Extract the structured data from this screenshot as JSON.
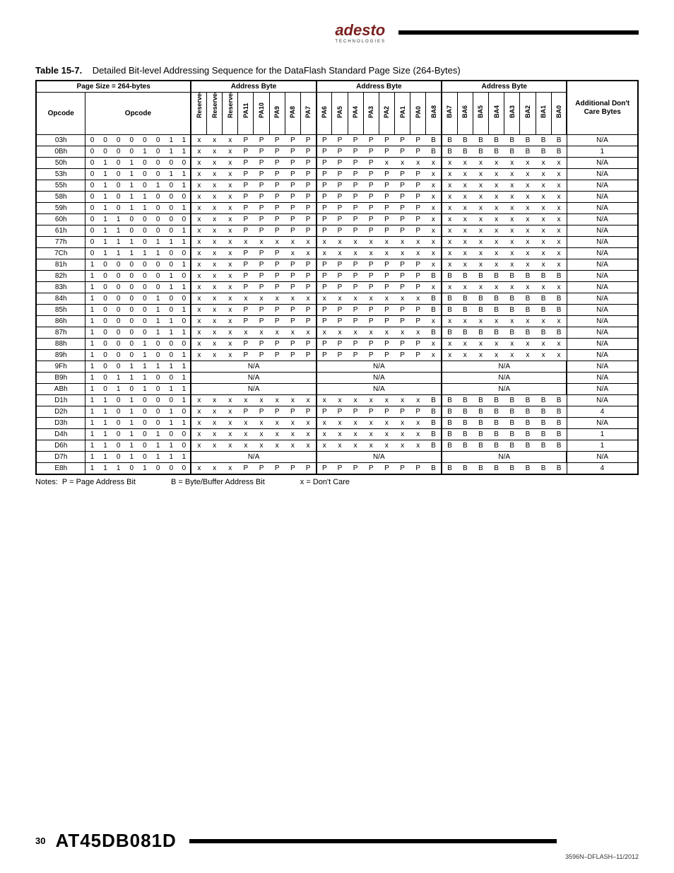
{
  "brand": {
    "name": "adesto",
    "sub": "TECHNOLOGIES"
  },
  "caption": {
    "label": "Table 15-7.",
    "text": "Detailed Bit-level Addressing Sequence for the DataFlash Standard Page Size (264-Bytes)"
  },
  "group_headers": {
    "page_size": "Page Size = 264-bytes",
    "addr1": "Address Byte",
    "addr2": "Address Byte",
    "addr3": "Address Byte",
    "extra": "Additional Don't Care Bytes"
  },
  "col_headers": {
    "opcode": "Opcode",
    "opcode_bits": "Opcode",
    "ab1": [
      "Reserved",
      "Reserved",
      "Reserved",
      "PA11",
      "PA10",
      "PA9",
      "PA8",
      "PA7"
    ],
    "ab2": [
      "PA6",
      "PA5",
      "PA4",
      "PA3",
      "PA2",
      "PA1",
      "PA0",
      "BA8"
    ],
    "ab3": [
      "BA7",
      "BA6",
      "BA5",
      "BA4",
      "BA3",
      "BA2",
      "BA1",
      "BA0"
    ]
  },
  "rows": [
    {
      "op": "03h",
      "ob": [
        "0",
        "0",
        "0",
        "0",
        "0",
        "0",
        "1",
        "1"
      ],
      "a1": [
        "x",
        "x",
        "x",
        "P",
        "P",
        "P",
        "P",
        "P"
      ],
      "a2": [
        "P",
        "P",
        "P",
        "P",
        "P",
        "P",
        "P",
        "B"
      ],
      "a3": [
        "B",
        "B",
        "B",
        "B",
        "B",
        "B",
        "B",
        "B"
      ],
      "ex": "N/A"
    },
    {
      "op": "0Bh",
      "ob": [
        "0",
        "0",
        "0",
        "0",
        "1",
        "0",
        "1",
        "1"
      ],
      "a1": [
        "x",
        "x",
        "x",
        "P",
        "P",
        "P",
        "P",
        "P"
      ],
      "a2": [
        "P",
        "P",
        "P",
        "P",
        "P",
        "P",
        "P",
        "B"
      ],
      "a3": [
        "B",
        "B",
        "B",
        "B",
        "B",
        "B",
        "B",
        "B"
      ],
      "ex": "1"
    },
    {
      "op": "50h",
      "ob": [
        "0",
        "1",
        "0",
        "1",
        "0",
        "0",
        "0",
        "0"
      ],
      "a1": [
        "x",
        "x",
        "x",
        "P",
        "P",
        "P",
        "P",
        "P"
      ],
      "a2": [
        "P",
        "P",
        "P",
        "P",
        "x",
        "x",
        "x",
        "x"
      ],
      "a3": [
        "x",
        "x",
        "x",
        "x",
        "x",
        "x",
        "x",
        "x"
      ],
      "ex": "N/A"
    },
    {
      "op": "53h",
      "ob": [
        "0",
        "1",
        "0",
        "1",
        "0",
        "0",
        "1",
        "1"
      ],
      "a1": [
        "x",
        "x",
        "x",
        "P",
        "P",
        "P",
        "P",
        "P"
      ],
      "a2": [
        "P",
        "P",
        "P",
        "P",
        "P",
        "P",
        "P",
        "x"
      ],
      "a3": [
        "x",
        "x",
        "x",
        "x",
        "x",
        "x",
        "x",
        "x"
      ],
      "ex": "N/A"
    },
    {
      "op": "55h",
      "ob": [
        "0",
        "1",
        "0",
        "1",
        "0",
        "1",
        "0",
        "1"
      ],
      "a1": [
        "x",
        "x",
        "x",
        "P",
        "P",
        "P",
        "P",
        "P"
      ],
      "a2": [
        "P",
        "P",
        "P",
        "P",
        "P",
        "P",
        "P",
        "x"
      ],
      "a3": [
        "x",
        "x",
        "x",
        "x",
        "x",
        "x",
        "x",
        "x"
      ],
      "ex": "N/A"
    },
    {
      "op": "58h",
      "ob": [
        "0",
        "1",
        "0",
        "1",
        "1",
        "0",
        "0",
        "0"
      ],
      "a1": [
        "x",
        "x",
        "x",
        "P",
        "P",
        "P",
        "P",
        "P"
      ],
      "a2": [
        "P",
        "P",
        "P",
        "P",
        "P",
        "P",
        "P",
        "x"
      ],
      "a3": [
        "x",
        "x",
        "x",
        "x",
        "x",
        "x",
        "x",
        "x"
      ],
      "ex": "N/A"
    },
    {
      "op": "59h",
      "ob": [
        "0",
        "1",
        "0",
        "1",
        "1",
        "0",
        "0",
        "1"
      ],
      "a1": [
        "x",
        "x",
        "x",
        "P",
        "P",
        "P",
        "P",
        "P"
      ],
      "a2": [
        "P",
        "P",
        "P",
        "P",
        "P",
        "P",
        "P",
        "x"
      ],
      "a3": [
        "x",
        "x",
        "x",
        "x",
        "x",
        "x",
        "x",
        "x"
      ],
      "ex": "N/A"
    },
    {
      "op": "60h",
      "ob": [
        "0",
        "1",
        "1",
        "0",
        "0",
        "0",
        "0",
        "0"
      ],
      "a1": [
        "x",
        "x",
        "x",
        "P",
        "P",
        "P",
        "P",
        "P"
      ],
      "a2": [
        "P",
        "P",
        "P",
        "P",
        "P",
        "P",
        "P",
        "x"
      ],
      "a3": [
        "x",
        "x",
        "x",
        "x",
        "x",
        "x",
        "x",
        "x"
      ],
      "ex": "N/A"
    },
    {
      "op": "61h",
      "ob": [
        "0",
        "1",
        "1",
        "0",
        "0",
        "0",
        "0",
        "1"
      ],
      "a1": [
        "x",
        "x",
        "x",
        "P",
        "P",
        "P",
        "P",
        "P"
      ],
      "a2": [
        "P",
        "P",
        "P",
        "P",
        "P",
        "P",
        "P",
        "x"
      ],
      "a3": [
        "x",
        "x",
        "x",
        "x",
        "x",
        "x",
        "x",
        "x"
      ],
      "ex": "N/A"
    },
    {
      "op": "77h",
      "ob": [
        "0",
        "1",
        "1",
        "1",
        "0",
        "1",
        "1",
        "1"
      ],
      "a1": [
        "x",
        "x",
        "x",
        "x",
        "x",
        "x",
        "x",
        "x"
      ],
      "a2": [
        "x",
        "x",
        "x",
        "x",
        "x",
        "x",
        "x",
        "x"
      ],
      "a3": [
        "x",
        "x",
        "x",
        "x",
        "x",
        "x",
        "x",
        "x"
      ],
      "ex": "N/A"
    },
    {
      "op": "7Ch",
      "ob": [
        "0",
        "1",
        "1",
        "1",
        "1",
        "1",
        "0",
        "0"
      ],
      "a1": [
        "x",
        "x",
        "x",
        "P",
        "P",
        "P",
        "x",
        "x"
      ],
      "a2": [
        "x",
        "x",
        "x",
        "x",
        "x",
        "x",
        "x",
        "x"
      ],
      "a3": [
        "x",
        "x",
        "x",
        "x",
        "x",
        "x",
        "x",
        "x"
      ],
      "ex": "N/A"
    },
    {
      "op": "81h",
      "ob": [
        "1",
        "0",
        "0",
        "0",
        "0",
        "0",
        "0",
        "1"
      ],
      "a1": [
        "x",
        "x",
        "x",
        "P",
        "P",
        "P",
        "P",
        "P"
      ],
      "a2": [
        "P",
        "P",
        "P",
        "P",
        "P",
        "P",
        "P",
        "x"
      ],
      "a3": [
        "x",
        "x",
        "x",
        "x",
        "x",
        "x",
        "x",
        "x"
      ],
      "ex": "N/A"
    },
    {
      "op": "82h",
      "ob": [
        "1",
        "0",
        "0",
        "0",
        "0",
        "0",
        "1",
        "0"
      ],
      "a1": [
        "x",
        "x",
        "x",
        "P",
        "P",
        "P",
        "P",
        "P"
      ],
      "a2": [
        "P",
        "P",
        "P",
        "P",
        "P",
        "P",
        "P",
        "B"
      ],
      "a3": [
        "B",
        "B",
        "B",
        "B",
        "B",
        "B",
        "B",
        "B"
      ],
      "ex": "N/A"
    },
    {
      "op": "83h",
      "ob": [
        "1",
        "0",
        "0",
        "0",
        "0",
        "0",
        "1",
        "1"
      ],
      "a1": [
        "x",
        "x",
        "x",
        "P",
        "P",
        "P",
        "P",
        "P"
      ],
      "a2": [
        "P",
        "P",
        "P",
        "P",
        "P",
        "P",
        "P",
        "x"
      ],
      "a3": [
        "x",
        "x",
        "x",
        "x",
        "x",
        "x",
        "x",
        "x"
      ],
      "ex": "N/A"
    },
    {
      "op": "84h",
      "ob": [
        "1",
        "0",
        "0",
        "0",
        "0",
        "1",
        "0",
        "0"
      ],
      "a1": [
        "x",
        "x",
        "x",
        "x",
        "x",
        "x",
        "x",
        "x"
      ],
      "a2": [
        "x",
        "x",
        "x",
        "x",
        "x",
        "x",
        "x",
        "B"
      ],
      "a3": [
        "B",
        "B",
        "B",
        "B",
        "B",
        "B",
        "B",
        "B"
      ],
      "ex": "N/A"
    },
    {
      "op": "85h",
      "ob": [
        "1",
        "0",
        "0",
        "0",
        "0",
        "1",
        "0",
        "1"
      ],
      "a1": [
        "x",
        "x",
        "x",
        "P",
        "P",
        "P",
        "P",
        "P"
      ],
      "a2": [
        "P",
        "P",
        "P",
        "P",
        "P",
        "P",
        "P",
        "B"
      ],
      "a3": [
        "B",
        "B",
        "B",
        "B",
        "B",
        "B",
        "B",
        "B"
      ],
      "ex": "N/A"
    },
    {
      "op": "86h",
      "ob": [
        "1",
        "0",
        "0",
        "0",
        "0",
        "1",
        "1",
        "0"
      ],
      "a1": [
        "x",
        "x",
        "x",
        "P",
        "P",
        "P",
        "P",
        "P"
      ],
      "a2": [
        "P",
        "P",
        "P",
        "P",
        "P",
        "P",
        "P",
        "x"
      ],
      "a3": [
        "x",
        "x",
        "x",
        "x",
        "x",
        "x",
        "x",
        "x"
      ],
      "ex": "N/A"
    },
    {
      "op": "87h",
      "ob": [
        "1",
        "0",
        "0",
        "0",
        "0",
        "1",
        "1",
        "1"
      ],
      "a1": [
        "x",
        "x",
        "x",
        "x",
        "x",
        "x",
        "x",
        "x"
      ],
      "a2": [
        "x",
        "x",
        "x",
        "x",
        "x",
        "x",
        "x",
        "B"
      ],
      "a3": [
        "B",
        "B",
        "B",
        "B",
        "B",
        "B",
        "B",
        "B"
      ],
      "ex": "N/A"
    },
    {
      "op": "88h",
      "ob": [
        "1",
        "0",
        "0",
        "0",
        "1",
        "0",
        "0",
        "0"
      ],
      "a1": [
        "x",
        "x",
        "x",
        "P",
        "P",
        "P",
        "P",
        "P"
      ],
      "a2": [
        "P",
        "P",
        "P",
        "P",
        "P",
        "P",
        "P",
        "x"
      ],
      "a3": [
        "x",
        "x",
        "x",
        "x",
        "x",
        "x",
        "x",
        "x"
      ],
      "ex": "N/A"
    },
    {
      "op": "89h",
      "ob": [
        "1",
        "0",
        "0",
        "0",
        "1",
        "0",
        "0",
        "1"
      ],
      "a1": [
        "x",
        "x",
        "x",
        "P",
        "P",
        "P",
        "P",
        "P"
      ],
      "a2": [
        "P",
        "P",
        "P",
        "P",
        "P",
        "P",
        "P",
        "x"
      ],
      "a3": [
        "x",
        "x",
        "x",
        "x",
        "x",
        "x",
        "x",
        "x"
      ],
      "ex": "N/A"
    },
    {
      "op": "9Fh",
      "ob": [
        "1",
        "0",
        "0",
        "1",
        "1",
        "1",
        "1",
        "1"
      ],
      "na": true,
      "ex": "N/A"
    },
    {
      "op": "B9h",
      "ob": [
        "1",
        "0",
        "1",
        "1",
        "1",
        "0",
        "0",
        "1"
      ],
      "na": true,
      "ex": "N/A"
    },
    {
      "op": "ABh",
      "ob": [
        "1",
        "0",
        "1",
        "0",
        "1",
        "0",
        "1",
        "1"
      ],
      "na": true,
      "ex": "N/A"
    },
    {
      "op": "D1h",
      "ob": [
        "1",
        "1",
        "0",
        "1",
        "0",
        "0",
        "0",
        "1"
      ],
      "a1": [
        "x",
        "x",
        "x",
        "x",
        "x",
        "x",
        "x",
        "x"
      ],
      "a2": [
        "x",
        "x",
        "x",
        "x",
        "x",
        "x",
        "x",
        "B"
      ],
      "a3": [
        "B",
        "B",
        "B",
        "B",
        "B",
        "B",
        "B",
        "B"
      ],
      "ex": "N/A"
    },
    {
      "op": "D2h",
      "ob": [
        "1",
        "1",
        "0",
        "1",
        "0",
        "0",
        "1",
        "0"
      ],
      "a1": [
        "x",
        "x",
        "x",
        "P",
        "P",
        "P",
        "P",
        "P"
      ],
      "a2": [
        "P",
        "P",
        "P",
        "P",
        "P",
        "P",
        "P",
        "B"
      ],
      "a3": [
        "B",
        "B",
        "B",
        "B",
        "B",
        "B",
        "B",
        "B"
      ],
      "ex": "4"
    },
    {
      "op": "D3h",
      "ob": [
        "1",
        "1",
        "0",
        "1",
        "0",
        "0",
        "1",
        "1"
      ],
      "a1": [
        "x",
        "x",
        "x",
        "x",
        "x",
        "x",
        "x",
        "x"
      ],
      "a2": [
        "x",
        "x",
        "x",
        "x",
        "x",
        "x",
        "x",
        "B"
      ],
      "a3": [
        "B",
        "B",
        "B",
        "B",
        "B",
        "B",
        "B",
        "B"
      ],
      "ex": "N/A"
    },
    {
      "op": "D4h",
      "ob": [
        "1",
        "1",
        "0",
        "1",
        "0",
        "1",
        "0",
        "0"
      ],
      "a1": [
        "x",
        "x",
        "x",
        "x",
        "x",
        "x",
        "x",
        "x"
      ],
      "a2": [
        "x",
        "x",
        "x",
        "x",
        "x",
        "x",
        "x",
        "B"
      ],
      "a3": [
        "B",
        "B",
        "B",
        "B",
        "B",
        "B",
        "B",
        "B"
      ],
      "ex": "1"
    },
    {
      "op": "D6h",
      "ob": [
        "1",
        "1",
        "0",
        "1",
        "0",
        "1",
        "1",
        "0"
      ],
      "a1": [
        "x",
        "x",
        "x",
        "x",
        "x",
        "x",
        "x",
        "x"
      ],
      "a2": [
        "x",
        "x",
        "x",
        "x",
        "x",
        "x",
        "x",
        "B"
      ],
      "a3": [
        "B",
        "B",
        "B",
        "B",
        "B",
        "B",
        "B",
        "B"
      ],
      "ex": "1"
    },
    {
      "op": "D7h",
      "ob": [
        "1",
        "1",
        "0",
        "1",
        "0",
        "1",
        "1",
        "1"
      ],
      "na": true,
      "ex": "N/A"
    },
    {
      "op": "E8h",
      "ob": [
        "1",
        "1",
        "1",
        "0",
        "1",
        "0",
        "0",
        "0"
      ],
      "a1": [
        "x",
        "x",
        "x",
        "P",
        "P",
        "P",
        "P",
        "P"
      ],
      "a2": [
        "P",
        "P",
        "P",
        "P",
        "P",
        "P",
        "P",
        "B"
      ],
      "a3": [
        "B",
        "B",
        "B",
        "B",
        "B",
        "B",
        "B",
        "B"
      ],
      "ex": "4"
    }
  ],
  "notes": {
    "label": "Notes:",
    "p": "P = Page Address Bit",
    "b": "B = Byte/Buffer Address Bit",
    "x": "x = Don't Care"
  },
  "footer": {
    "page": "30",
    "part": "AT45DB081D",
    "docid": "3596N–DFLASH–11/2012"
  }
}
